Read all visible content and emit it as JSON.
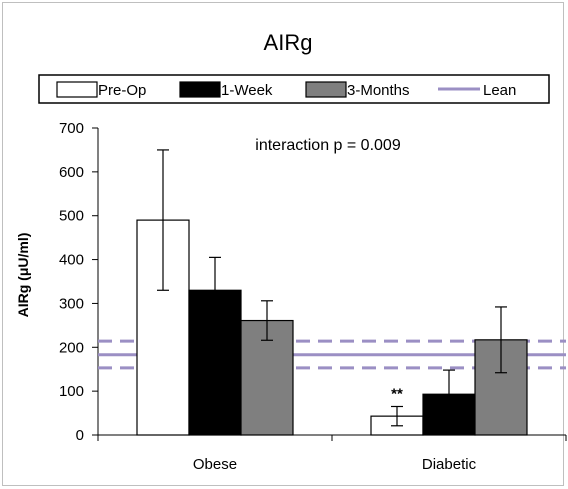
{
  "chart_data": {
    "type": "bar",
    "title": "AIRg",
    "xlabel": "",
    "ylabel": "AIRg (μU/ml)",
    "ylim": [
      0,
      700
    ],
    "yticks": [
      0,
      100,
      200,
      300,
      400,
      500,
      600,
      700
    ],
    "categories": [
      "Obese",
      "Diabetic"
    ],
    "series": [
      {
        "name": "Pre-Op",
        "color": "#ffffff",
        "values": [
          490,
          43
        ],
        "error": [
          160,
          22
        ],
        "significance": [
          "",
          "**"
        ]
      },
      {
        "name": "1-Week",
        "color": "#000000",
        "values": [
          330,
          93
        ],
        "error": [
          75,
          55
        ],
        "significance": [
          "",
          ""
        ]
      },
      {
        "name": "3-Months",
        "color": "#7f7f7f",
        "values": [
          261,
          217
        ],
        "error": [
          45,
          75
        ],
        "significance": [
          "",
          ""
        ]
      }
    ],
    "reference_line": {
      "name": "Lean",
      "color": "#9b8fc4",
      "value": 183,
      "band": [
        153,
        214
      ]
    },
    "annotation": "interaction p = 0.009",
    "legend_position": "top",
    "grid": false
  }
}
